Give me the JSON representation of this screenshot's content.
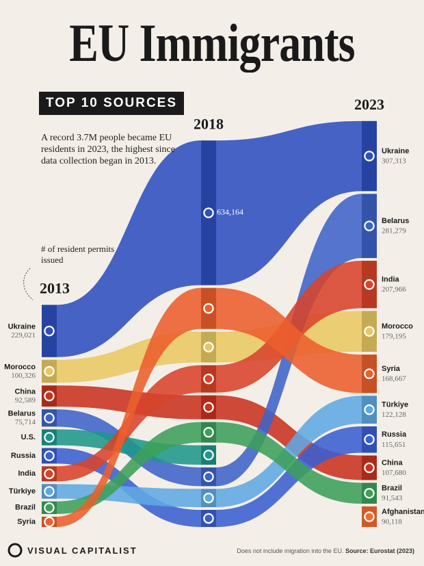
{
  "chart_data": {
    "type": "ribbon",
    "title": "EU Immigrants",
    "subtitle": "TOP 10 SOURCES",
    "annotation": "A record 3.7M people became EU residents in 2023, the highest since data collection began in 2013.",
    "axis_note": "# of resident permits issued",
    "brand": "VISUAL CAPITALIST",
    "footnote": "Does not include migration into the EU.",
    "source": "Source: Eurostat (2023)",
    "x": [
      "2013",
      "2018",
      "2023"
    ],
    "series": [
      {
        "name": "Ukraine",
        "color": "#2d4fbf",
        "values": [
          229021,
          634164,
          307313
        ],
        "value_labels": [
          "229,021",
          "634,164",
          "307,313"
        ]
      },
      {
        "name": "Morocco",
        "color": "#e9c862",
        "values": [
          100326,
          135000,
          179195
        ],
        "value_labels": [
          "100,326",
          null,
          "179,195"
        ]
      },
      {
        "name": "China",
        "color": "#c8321f",
        "values": [
          92589,
          105000,
          107680
        ],
        "value_labels": [
          "92,589",
          null,
          "107,680"
        ]
      },
      {
        "name": "Belarus",
        "color": "#3d63c8",
        "values": [
          75714,
          82000,
          281279
        ],
        "value_labels": [
          "75,714",
          null,
          "281,279"
        ]
      },
      {
        "name": "U.S.",
        "color": "#1e978a",
        "values": [
          70000,
          85000,
          null
        ],
        "value_labels": [
          null,
          null,
          null
        ]
      },
      {
        "name": "Russia",
        "color": "#3a5fd0",
        "values": [
          68000,
          75000,
          115651
        ],
        "value_labels": [
          null,
          null,
          "115,651"
        ]
      },
      {
        "name": "India",
        "color": "#d8432a",
        "values": [
          66000,
          120000,
          207966
        ],
        "value_labels": [
          null,
          null,
          "207,966"
        ]
      },
      {
        "name": "Türkiye",
        "color": "#5ea8e2",
        "values": [
          64000,
          80000,
          122128
        ],
        "value_labels": [
          null,
          null,
          "122,128"
        ]
      },
      {
        "name": "Brazil",
        "color": "#3c9f5a",
        "values": [
          55000,
          90000,
          91543
        ],
        "value_labels": [
          null,
          null,
          "91,543"
        ]
      },
      {
        "name": "Syria",
        "color": "#ec5f2c",
        "values": [
          45000,
          180000,
          168667
        ],
        "value_labels": [
          null,
          null,
          "168,667"
        ]
      },
      {
        "name": "Afghanistan",
        "color": "#f26b2e",
        "values": [
          null,
          null,
          90118
        ],
        "value_labels": [
          null,
          null,
          "90,118"
        ]
      }
    ]
  }
}
